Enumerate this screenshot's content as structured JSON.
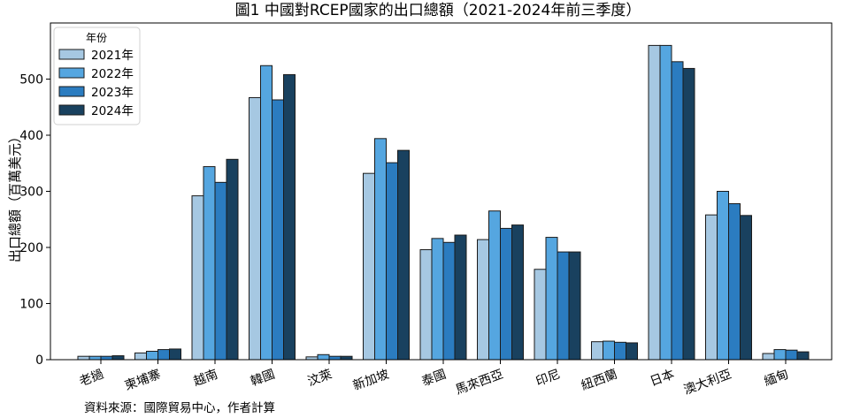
{
  "chart_data": {
    "type": "bar",
    "title": "圖1 中國對RCEP國家的出口總額（2021-2024年前三季度）",
    "xlabel": "",
    "ylabel": "出口總額（百萬美元）",
    "categories": [
      "老撾",
      "柬埔寨",
      "越南",
      "韓國",
      "汶萊",
      "新加坡",
      "泰國",
      "馬來西亞",
      "印尼",
      "紐西蘭",
      "日本",
      "澳大利亞",
      "緬甸"
    ],
    "series": [
      {
        "name": "2021年",
        "color": "#a6c8e2",
        "values": [
          6,
          12,
          292,
          467,
          5,
          332,
          196,
          214,
          161,
          32,
          560,
          258,
          11
        ]
      },
      {
        "name": "2022年",
        "color": "#55a6e0",
        "values": [
          6,
          15,
          344,
          524,
          9,
          394,
          216,
          265,
          218,
          33,
          560,
          300,
          18
        ]
      },
      {
        "name": "2023年",
        "color": "#2b7cc0",
        "values": [
          6,
          18,
          316,
          463,
          6,
          351,
          209,
          234,
          192,
          31,
          531,
          278,
          17
        ]
      },
      {
        "name": "2024年",
        "color": "#19415f",
        "values": [
          7,
          19,
          357,
          508,
          6,
          373,
          222,
          240,
          192,
          30,
          519,
          257,
          14
        ]
      }
    ],
    "ylim": [
      0,
      600
    ],
    "yticks": [
      0,
      100,
      200,
      300,
      400,
      500
    ],
    "legend": {
      "title": "年份",
      "placement": "top-left"
    },
    "grid": false
  },
  "source_note": "資料來源：國際貿易中心，作者計算"
}
